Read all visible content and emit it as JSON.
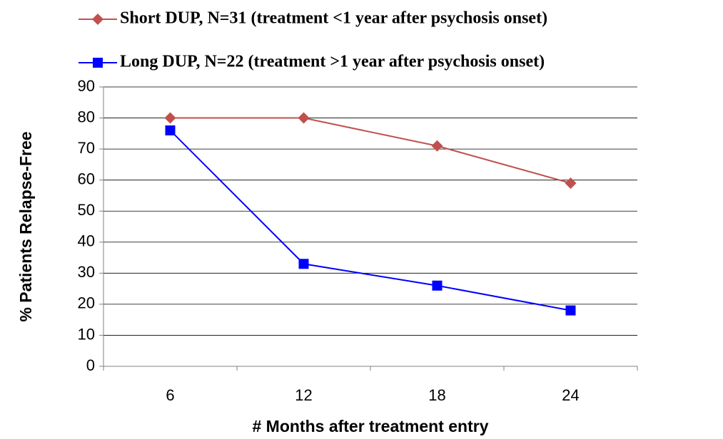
{
  "chart_data": {
    "type": "line",
    "x_label": "# Months after treatment entry",
    "y_label": "% Patients Relapse-Free",
    "categories": [
      "6",
      "12",
      "18",
      "24"
    ],
    "series": [
      {
        "name": "Short DUP, N=31 (treatment <1 year after psychosis onset)",
        "color": "#c0504d",
        "marker": "diamond",
        "values": [
          80,
          80,
          71,
          59
        ]
      },
      {
        "name": "Long DUP, N=22 (treatment >1 year after psychosis onset)",
        "color": "#0000ff",
        "marker": "square",
        "values": [
          76,
          33,
          26,
          18
        ]
      }
    ],
    "ylim": [
      0,
      90
    ],
    "yticks": [
      0,
      10,
      20,
      30,
      40,
      50,
      60,
      70,
      80,
      90
    ],
    "grid": true
  }
}
